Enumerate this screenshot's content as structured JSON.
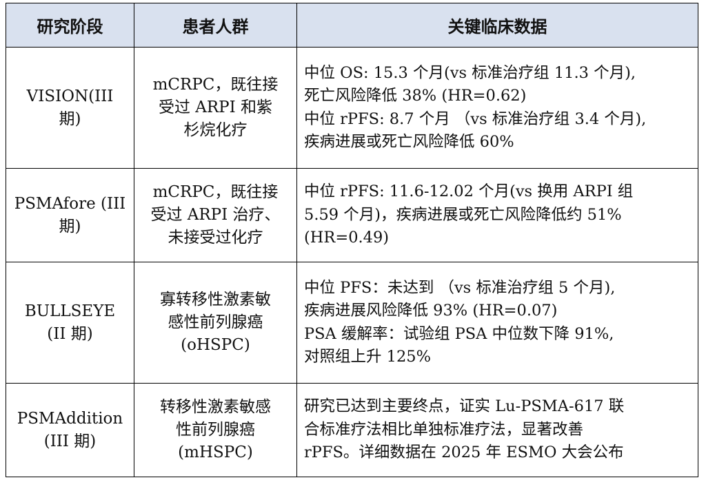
{
  "table": {
    "headers": [
      "研究阶段",
      "患者人群",
      "关键临床数据"
    ],
    "rows": [
      {
        "stage": [
          "VISION(III",
          "期)"
        ],
        "population": [
          "mCRPC，既往接",
          "受过 ARPI 和紫",
          "杉烷化疗"
        ],
        "data": [
          "中位 OS: 15.3 个月(vs 标准治疗组 11.3 个月),",
          "死亡风险降低 38% (HR=0.62)",
          "中位 rPFS: 8.7 个月 （vs 标准治疗组 3.4 个月),",
          "疾病进展或死亡风险降低 60%"
        ]
      },
      {
        "stage": [
          "PSMAfore (III",
          "期)"
        ],
        "population": [
          "mCRPC，既往接",
          "受过 ARPI 治疗、",
          "未接受过化疗"
        ],
        "data": [
          "中位 rPFS: 11.6-12.02 个月(vs 换用 ARPI 组",
          "5.59 个月)，疾病进展或死亡风险降低约 51%",
          "(HR=0.49)"
        ]
      },
      {
        "stage": [
          "BULLSEYE",
          "(II 期)"
        ],
        "population": [
          "寡转移性激素敏",
          "感性前列腺癌",
          "(oHSPC)"
        ],
        "data": [
          "中位 PFS：未达到 （vs 标准治疗组 5 个月),",
          "疾病进展风险降低 93% (HR=0.07)",
          "PSA 缓解率：试验组 PSA 中位数下降 91%,",
          "对照组上升 125%"
        ]
      },
      {
        "stage": [
          "PSMAddition",
          "(III 期)"
        ],
        "population": [
          "转移性激素敏感",
          "性前列腺癌",
          "(mHSPC)"
        ],
        "data": [
          "研究已达到主要终点，证实 Lu-PSMA-617 联",
          "合标准疗法相比单独标准疗法，显著改善",
          "rPFS。详细数据在 2025 年 ESMO 大会公布"
        ]
      }
    ]
  }
}
